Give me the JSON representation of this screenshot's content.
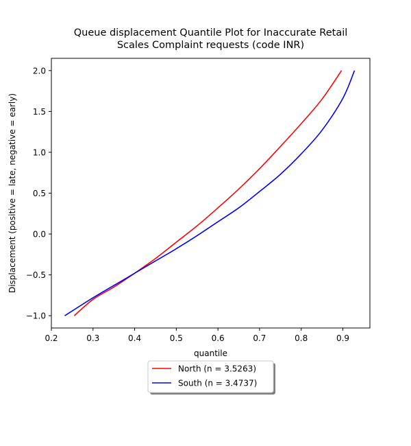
{
  "chart_data": {
    "type": "line",
    "title": [
      "Queue displacement Quantile Plot for Inaccurate Retail",
      "Scales Complaint  requests (code INR)"
    ],
    "xlabel": "quantile",
    "ylabel": "Displacement (positive = late, negative = early)",
    "xlim": [
      0.2,
      0.965
    ],
    "ylim": [
      -1.15,
      2.15
    ],
    "xticks": [
      0.2,
      0.3,
      0.4,
      0.5,
      0.6,
      0.7,
      0.8,
      0.9
    ],
    "xtick_labels": [
      "0.2",
      "0.3",
      "0.4",
      "0.5",
      "0.6",
      "0.7",
      "0.8",
      "0.9"
    ],
    "yticks": [
      -1.0,
      -0.5,
      0.0,
      0.5,
      1.0,
      1.5,
      2.0
    ],
    "ytick_labels": [
      "−1.0",
      "−0.5",
      "0.0",
      "0.5",
      "1.0",
      "1.5",
      "2.0"
    ],
    "grid": false,
    "legend_position": "below",
    "series": [
      {
        "name": "North (n = 3.5263)",
        "color": "#ff0000",
        "x": [
          0.255,
          0.3,
          0.35,
          0.4,
          0.45,
          0.5,
          0.55,
          0.6,
          0.65,
          0.7,
          0.75,
          0.8,
          0.85,
          0.897
        ],
        "y": [
          -1.0,
          -0.8,
          -0.65,
          -0.48,
          -0.3,
          -0.1,
          0.1,
          0.32,
          0.55,
          0.8,
          1.07,
          1.35,
          1.65,
          2.0
        ]
      },
      {
        "name": "South (n = 3.4737)",
        "color": "#0000ff",
        "x": [
          0.232,
          0.3,
          0.35,
          0.4,
          0.45,
          0.5,
          0.55,
          0.6,
          0.65,
          0.7,
          0.75,
          0.8,
          0.85,
          0.9,
          0.928
        ],
        "y": [
          -1.0,
          -0.78,
          -0.63,
          -0.48,
          -0.33,
          -0.18,
          -0.02,
          0.15,
          0.32,
          0.52,
          0.73,
          0.98,
          1.27,
          1.66,
          2.0
        ]
      }
    ]
  }
}
